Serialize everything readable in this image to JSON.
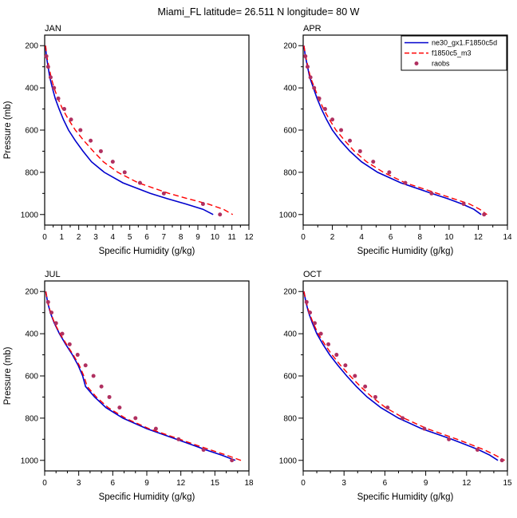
{
  "title": "Miami_FL  latitude= 26.511 N longitude= 80 W",
  "axes": {
    "xlabel": "Specific Humidity (g/kg)",
    "ylabel": "Pressure (mb)",
    "ylim": [
      150,
      1050
    ],
    "yticks": [
      200,
      400,
      600,
      800,
      1000
    ],
    "y_minor": [
      300,
      500,
      700,
      900
    ]
  },
  "legend": {
    "panel_index": 1,
    "entries": [
      {
        "label": "ne30_gx1.F1850c5d",
        "color": "#0000cd",
        "style": "solid"
      },
      {
        "label": "f1850c5_m3",
        "color": "#ff0000",
        "style": "dashed"
      },
      {
        "label": "raobs",
        "color": "#b03060",
        "style": "dot"
      }
    ]
  },
  "chart_data": [
    {
      "type": "line",
      "label": "JAN",
      "show_ylabel": true,
      "xlim": [
        0,
        12
      ],
      "xticks": [
        0,
        1,
        2,
        3,
        4,
        5,
        6,
        7,
        8,
        9,
        10,
        11,
        12
      ],
      "x_minor_step": 0.5,
      "series": [
        {
          "name": "ne30_gx1.F1850c5d",
          "color": "#0000cd",
          "style": "solid",
          "pressure": [
            200,
            250,
            300,
            350,
            400,
            450,
            500,
            550,
            600,
            650,
            700,
            750,
            800,
            850,
            900,
            925,
            950,
            975,
            1000
          ],
          "values": [
            0.05,
            0.1,
            0.2,
            0.3,
            0.45,
            0.62,
            0.85,
            1.1,
            1.4,
            1.8,
            2.25,
            2.75,
            3.5,
            4.6,
            6.2,
            7.2,
            8.3,
            9.3,
            9.9
          ]
        },
        {
          "name": "f1850c5_m3",
          "color": "#ff0000",
          "style": "dashed",
          "pressure": [
            200,
            250,
            300,
            350,
            400,
            450,
            500,
            550,
            600,
            650,
            700,
            750,
            800,
            850,
            900,
            925,
            950,
            975,
            1000
          ],
          "values": [
            0.05,
            0.12,
            0.25,
            0.38,
            0.55,
            0.78,
            1.05,
            1.4,
            1.8,
            2.3,
            2.85,
            3.45,
            4.3,
            5.5,
            7.3,
            8.4,
            9.6,
            10.5,
            11.05
          ]
        }
      ],
      "raobs": {
        "pressure": [
          250,
          300,
          350,
          400,
          450,
          500,
          550,
          600,
          650,
          700,
          750,
          800,
          850,
          900,
          950,
          1000
        ],
        "values": [
          0.1,
          0.2,
          0.35,
          0.55,
          0.8,
          1.15,
          1.55,
          2.1,
          2.7,
          3.3,
          4.0,
          4.7,
          5.6,
          7.0,
          9.3,
          10.3
        ]
      }
    },
    {
      "type": "line",
      "label": "APR",
      "show_ylabel": false,
      "xlim": [
        0,
        14
      ],
      "xticks": [
        0,
        2,
        4,
        6,
        8,
        10,
        12,
        14
      ],
      "x_minor_step": 1,
      "series": [
        {
          "name": "ne30_gx1.F1850c5d",
          "color": "#0000cd",
          "style": "solid",
          "pressure": [
            200,
            250,
            300,
            350,
            400,
            450,
            500,
            550,
            600,
            650,
            700,
            750,
            800,
            850,
            900,
            925,
            950,
            975,
            1000
          ],
          "values": [
            0.05,
            0.15,
            0.3,
            0.45,
            0.7,
            0.95,
            1.25,
            1.6,
            2.0,
            2.55,
            3.2,
            4.0,
            5.1,
            6.7,
            8.8,
            9.9,
            10.9,
            11.7,
            12.2
          ]
        },
        {
          "name": "f1850c5_m3",
          "color": "#ff0000",
          "style": "dashed",
          "pressure": [
            200,
            250,
            300,
            350,
            400,
            450,
            500,
            550,
            600,
            650,
            700,
            750,
            800,
            850,
            900,
            925,
            950,
            975,
            1000
          ],
          "values": [
            0.05,
            0.17,
            0.33,
            0.5,
            0.78,
            1.06,
            1.4,
            1.8,
            2.25,
            2.85,
            3.5,
            4.35,
            5.5,
            7.0,
            9.2,
            10.3,
            11.4,
            12.1,
            12.6
          ]
        }
      ],
      "raobs": {
        "pressure": [
          250,
          300,
          350,
          400,
          450,
          500,
          550,
          600,
          650,
          700,
          750,
          800,
          850,
          900,
          950,
          1000
        ],
        "values": [
          0.15,
          0.3,
          0.5,
          0.75,
          1.1,
          1.5,
          2.0,
          2.6,
          3.2,
          3.9,
          4.8,
          5.9,
          7.0,
          8.8,
          11.0,
          12.4
        ]
      }
    },
    {
      "type": "line",
      "label": "JUL",
      "show_ylabel": true,
      "xlim": [
        0,
        18
      ],
      "xticks": [
        0,
        3,
        6,
        9,
        12,
        15,
        18
      ],
      "x_minor_step": 1,
      "series": [
        {
          "name": "ne30_gx1.F1850c5d",
          "color": "#0000cd",
          "style": "solid",
          "pressure": [
            200,
            250,
            300,
            350,
            400,
            450,
            500,
            550,
            600,
            650,
            700,
            750,
            800,
            850,
            900,
            925,
            950,
            975,
            1000
          ],
          "values": [
            0.1,
            0.25,
            0.5,
            0.85,
            1.3,
            1.85,
            2.45,
            2.95,
            3.35,
            3.6,
            4.4,
            5.4,
            6.9,
            9.0,
            11.6,
            12.9,
            14.2,
            15.6,
            16.8
          ]
        },
        {
          "name": "f1850c5_m3",
          "color": "#ff0000",
          "style": "dashed",
          "pressure": [
            200,
            250,
            300,
            350,
            400,
            450,
            500,
            550,
            600,
            650,
            700,
            750,
            800,
            850,
            900,
            925,
            950,
            975,
            1000
          ],
          "values": [
            0.1,
            0.27,
            0.52,
            0.88,
            1.35,
            1.92,
            2.52,
            3.05,
            3.45,
            3.75,
            4.55,
            5.6,
            7.1,
            9.2,
            11.9,
            13.2,
            14.6,
            16.0,
            17.3
          ]
        }
      ],
      "raobs": {
        "pressure": [
          250,
          300,
          350,
          400,
          450,
          500,
          550,
          600,
          650,
          700,
          750,
          800,
          850,
          900,
          950,
          1000
        ],
        "values": [
          0.3,
          0.6,
          1.0,
          1.55,
          2.2,
          2.9,
          3.6,
          4.3,
          5.0,
          5.7,
          6.6,
          8.0,
          9.8,
          11.8,
          14.0,
          16.5
        ]
      }
    },
    {
      "type": "line",
      "label": "OCT",
      "show_ylabel": false,
      "xlim": [
        0,
        15
      ],
      "xticks": [
        0,
        3,
        6,
        9,
        12,
        15
      ],
      "x_minor_step": 1,
      "series": [
        {
          "name": "ne30_gx1.F1850c5d",
          "color": "#0000cd",
          "style": "solid",
          "pressure": [
            200,
            250,
            300,
            350,
            400,
            450,
            500,
            550,
            600,
            650,
            700,
            750,
            800,
            850,
            900,
            925,
            950,
            975,
            1000
          ],
          "values": [
            0.05,
            0.2,
            0.4,
            0.68,
            1.0,
            1.45,
            1.95,
            2.55,
            3.2,
            3.9,
            4.7,
            5.7,
            7.0,
            8.7,
            10.9,
            11.9,
            12.9,
            13.7,
            14.3
          ]
        },
        {
          "name": "f1850c5_m3",
          "color": "#ff0000",
          "style": "dashed",
          "pressure": [
            200,
            250,
            300,
            350,
            400,
            450,
            500,
            550,
            600,
            650,
            700,
            750,
            800,
            850,
            900,
            925,
            950,
            975,
            1000
          ],
          "values": [
            0.05,
            0.22,
            0.44,
            0.74,
            1.1,
            1.58,
            2.12,
            2.75,
            3.45,
            4.2,
            5.05,
            6.05,
            7.4,
            9.1,
            11.3,
            12.3,
            13.3,
            14.1,
            14.8
          ]
        }
      ],
      "raobs": {
        "pressure": [
          250,
          300,
          350,
          400,
          450,
          500,
          550,
          600,
          650,
          700,
          750,
          800,
          850,
          900,
          950,
          1000
        ],
        "values": [
          0.25,
          0.5,
          0.85,
          1.3,
          1.85,
          2.45,
          3.1,
          3.8,
          4.55,
          5.3,
          6.2,
          7.3,
          8.9,
          10.7,
          12.8,
          14.6
        ]
      }
    }
  ]
}
